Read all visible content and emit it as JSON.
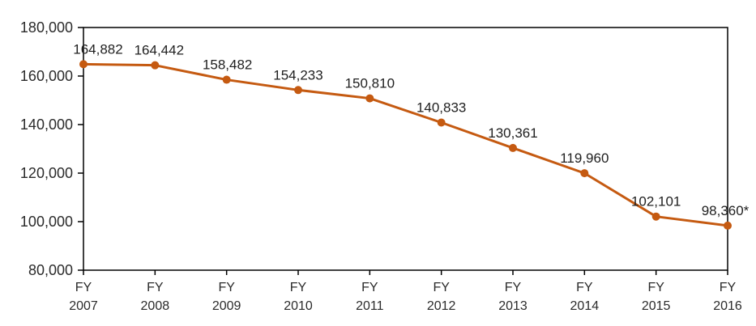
{
  "chart_data": {
    "type": "line",
    "title": "",
    "categories": [
      "FY 2007",
      "FY 2008",
      "FY 2009",
      "FY 2010",
      "FY 2011",
      "FY 2012",
      "FY 2013",
      "FY 2014",
      "FY 2015",
      "FY 2016"
    ],
    "category_prefix": "FY",
    "category_years": [
      "2007",
      "2008",
      "2009",
      "2010",
      "2011",
      "2012",
      "2013",
      "2014",
      "2015",
      "2016"
    ],
    "values": [
      164882,
      164442,
      158482,
      154233,
      150810,
      140833,
      130361,
      119960,
      102101,
      98360
    ],
    "data_labels": [
      "164,882",
      "164,442",
      "158,482",
      "154,233",
      "150,810",
      "140,833",
      "130,361",
      "119,960",
      "102,101",
      "98,360*"
    ],
    "ylim": [
      80000,
      180000
    ],
    "ytick_step": 20000,
    "ytick_labels": [
      "80,000",
      "100,000",
      "120,000",
      "140,000",
      "160,000",
      "180,000"
    ],
    "xlabel": "",
    "ylabel": "",
    "grid": "off",
    "legend": "none",
    "colors": {
      "line": "#C55A11",
      "marker": "#C55A11",
      "axis": "#000000",
      "data_label_text": "#1f1f1f",
      "axis_label_text": "#2b2b2b",
      "background": "#ffffff"
    }
  }
}
